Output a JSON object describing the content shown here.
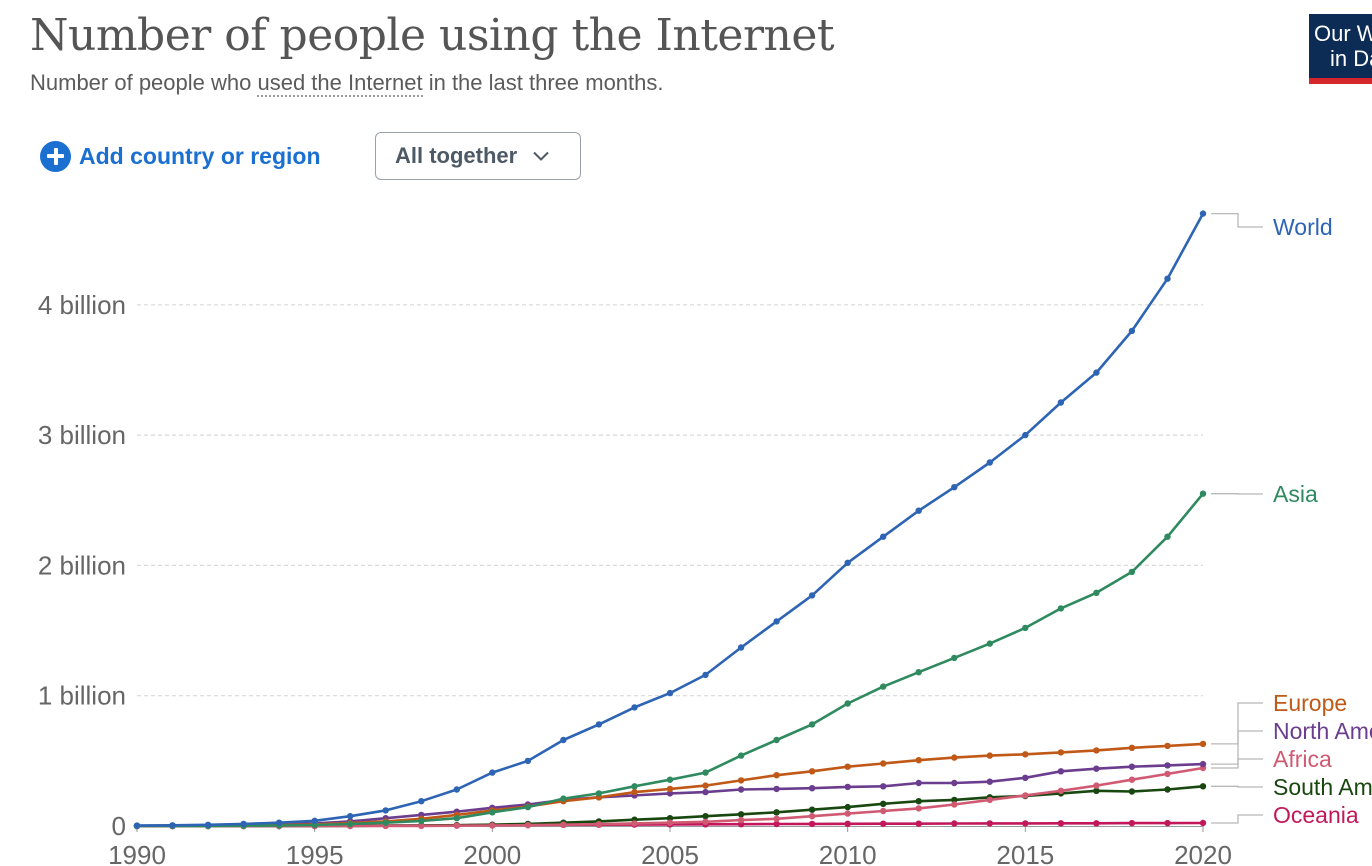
{
  "header": {
    "title": "Number of people using the Internet",
    "subtitle_pre": "Number of people who ",
    "subtitle_link": "used the Internet",
    "subtitle_post": " in the last three months."
  },
  "logo": {
    "line1": "Our World",
    "line2": "in Data"
  },
  "controls": {
    "add_label": "Add country or region",
    "add_icon": "plus-circle-icon",
    "selector_label": "All together",
    "selector_icon": "chevron-down-icon"
  },
  "chart_data": {
    "type": "line",
    "title": "Number of people using the Internet",
    "subtitle": "Number of people who used the Internet in the last three months.",
    "xlabel": "",
    "ylabel": "",
    "xlim": [
      1990,
      2020
    ],
    "ylim": [
      0,
      4700000000
    ],
    "x_ticks": [
      1990,
      1995,
      2000,
      2005,
      2010,
      2015,
      2020
    ],
    "y_ticks": [
      {
        "value": 0,
        "label": "0"
      },
      {
        "value": 1000000000,
        "label": "1 billion"
      },
      {
        "value": 2000000000,
        "label": "2 billion"
      },
      {
        "value": 3000000000,
        "label": "3 billion"
      },
      {
        "value": 4000000000,
        "label": "4 billion"
      }
    ],
    "grid": true,
    "legend_placement": "right, labels at line ends",
    "x": [
      1990,
      1991,
      1992,
      1993,
      1994,
      1995,
      1996,
      1997,
      1998,
      1999,
      2000,
      2001,
      2002,
      2003,
      2004,
      2005,
      2006,
      2007,
      2008,
      2009,
      2010,
      2011,
      2012,
      2013,
      2014,
      2015,
      2016,
      2017,
      2018,
      2019,
      2020
    ],
    "series": [
      {
        "name": "World",
        "color": "#2e64b4",
        "values": [
          3000000,
          5000000,
          9000000,
          16000000,
          25000000,
          40000000,
          75000000,
          120000000,
          190000000,
          280000000,
          410000000,
          500000000,
          660000000,
          780000000,
          910000000,
          1020000000,
          1160000000,
          1370000000,
          1570000000,
          1770000000,
          2020000000,
          2220000000,
          2420000000,
          2600000000,
          2790000000,
          3000000000,
          3250000000,
          3480000000,
          3800000000,
          4200000000,
          4700000000
        ]
      },
      {
        "name": "Asia",
        "color": "#2f8a5f",
        "values": [
          0,
          500000,
          1000000,
          2000000,
          4000000,
          8000000,
          15000000,
          25000000,
          38000000,
          60000000,
          105000000,
          145000000,
          210000000,
          250000000,
          305000000,
          355000000,
          410000000,
          540000000,
          660000000,
          780000000,
          940000000,
          1070000000,
          1180000000,
          1290000000,
          1400000000,
          1520000000,
          1670000000,
          1790000000,
          1950000000,
          2220000000,
          2550000000
        ]
      },
      {
        "name": "Europe",
        "color": "#c05917",
        "values": [
          500000,
          1000000,
          2000000,
          4000000,
          7000000,
          12000000,
          22000000,
          35000000,
          55000000,
          85000000,
          120000000,
          150000000,
          190000000,
          220000000,
          260000000,
          285000000,
          310000000,
          350000000,
          390000000,
          420000000,
          455000000,
          480000000,
          505000000,
          525000000,
          540000000,
          550000000,
          565000000,
          580000000,
          600000000,
          615000000,
          630000000
        ]
      },
      {
        "name": "North America",
        "color": "#6b3d8f",
        "values": [
          2000000,
          3000000,
          5000000,
          8000000,
          12000000,
          20000000,
          35000000,
          60000000,
          85000000,
          110000000,
          140000000,
          165000000,
          200000000,
          220000000,
          235000000,
          250000000,
          260000000,
          280000000,
          285000000,
          290000000,
          300000000,
          305000000,
          330000000,
          330000000,
          340000000,
          370000000,
          420000000,
          440000000,
          455000000,
          465000000,
          475000000
        ]
      },
      {
        "name": "Africa",
        "color": "#d15a73",
        "values": [
          0,
          0,
          0,
          0,
          0,
          0,
          0,
          500000,
          1000000,
          2000000,
          4000000,
          6000000,
          10000000,
          14000000,
          20000000,
          25000000,
          32000000,
          45000000,
          55000000,
          75000000,
          95000000,
          115000000,
          135000000,
          165000000,
          200000000,
          235000000,
          270000000,
          310000000,
          355000000,
          400000000,
          445000000
        ]
      },
      {
        "name": "South America",
        "color": "#18470f",
        "values": [
          0,
          0,
          0,
          0,
          0,
          0,
          1000000,
          2000000,
          4000000,
          6000000,
          10000000,
          16000000,
          25000000,
          35000000,
          48000000,
          60000000,
          75000000,
          90000000,
          105000000,
          125000000,
          145000000,
          170000000,
          190000000,
          200000000,
          220000000,
          230000000,
          250000000,
          270000000,
          265000000,
          280000000,
          305000000
        ]
      },
      {
        "name": "Oceania",
        "color": "#c2185b",
        "values": [
          0,
          0,
          0,
          0,
          0,
          1000000,
          2000000,
          3000000,
          4000000,
          5000000,
          7000000,
          8000000,
          9000000,
          10000000,
          11000000,
          12000000,
          13000000,
          14000000,
          15000000,
          16000000,
          17000000,
          18000000,
          18000000,
          19000000,
          20000000,
          20000000,
          21000000,
          21000000,
          22000000,
          22000000,
          23000000
        ]
      }
    ]
  }
}
